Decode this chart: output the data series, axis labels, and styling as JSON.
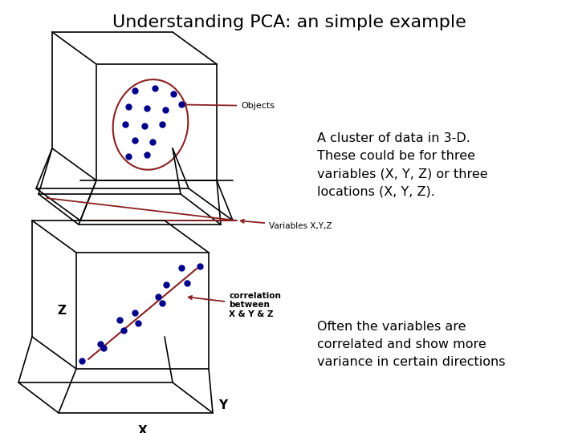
{
  "title": "Understanding PCA: an simple example",
  "title_fontsize": 16,
  "title_color": "#000000",
  "background_color": "#ffffff",
  "text1": "A cluster of data in 3-D.\nThese could be for three\nvariables (X, Y, Z) or three\nlocations (X, Y, Z).",
  "text2": "Often the variables are\ncorrelated and show more\nvariance in certain directions",
  "dot_color": "#00008B",
  "ellipse_color": "#8B2020",
  "box_color": "#000000",
  "arrow_color": "#8B2020",
  "label_color": "#000000",
  "corr_label": "correlation\nbetween\nX & Y & Z",
  "objects_label": "Objects",
  "variables_label": "Variables X,Y,Z"
}
